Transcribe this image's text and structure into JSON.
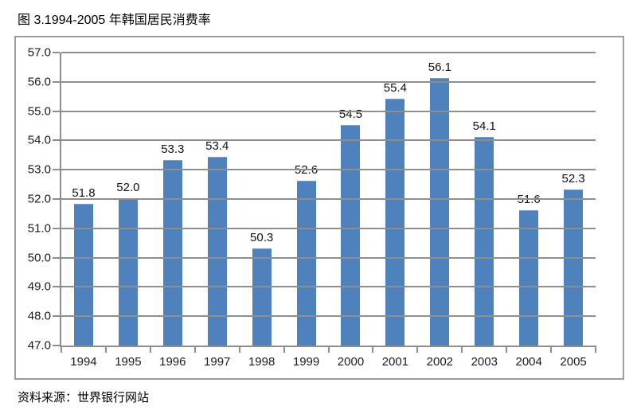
{
  "page": {
    "caption": "图 3.1994-2005 年韩国居民消费率",
    "source_note": "资料来源：世界银行网站"
  },
  "chart_data": {
    "type": "bar",
    "title": "图 3.1994-2005 年韩国居民消费率",
    "categories": [
      "1994",
      "1995",
      "1996",
      "1997",
      "1998",
      "1999",
      "2000",
      "2001",
      "2002",
      "2003",
      "2004",
      "2005"
    ],
    "values": [
      51.8,
      52.0,
      53.3,
      53.4,
      50.3,
      52.6,
      54.5,
      55.4,
      56.1,
      54.1,
      51.6,
      52.3
    ],
    "value_labels": [
      "51.8",
      "52.0",
      "53.3",
      "53.4",
      "50.3",
      "52.6",
      "54.5",
      "55.4",
      "56.1",
      "54.1",
      "51.6",
      "52.3"
    ],
    "xlabel": "",
    "ylabel": "",
    "ylim": [
      47.0,
      57.0
    ],
    "ytick_step": 1.0,
    "yticks": [
      "57.0",
      "56.0",
      "55.0",
      "54.0",
      "53.0",
      "52.0",
      "51.0",
      "50.0",
      "49.0",
      "48.0",
      "47.0"
    ],
    "grid": true,
    "legend": "none",
    "bar_color": "#4F81BD",
    "line_color": "#8e8e8e",
    "source_note": "资料来源：世界银行网站"
  }
}
